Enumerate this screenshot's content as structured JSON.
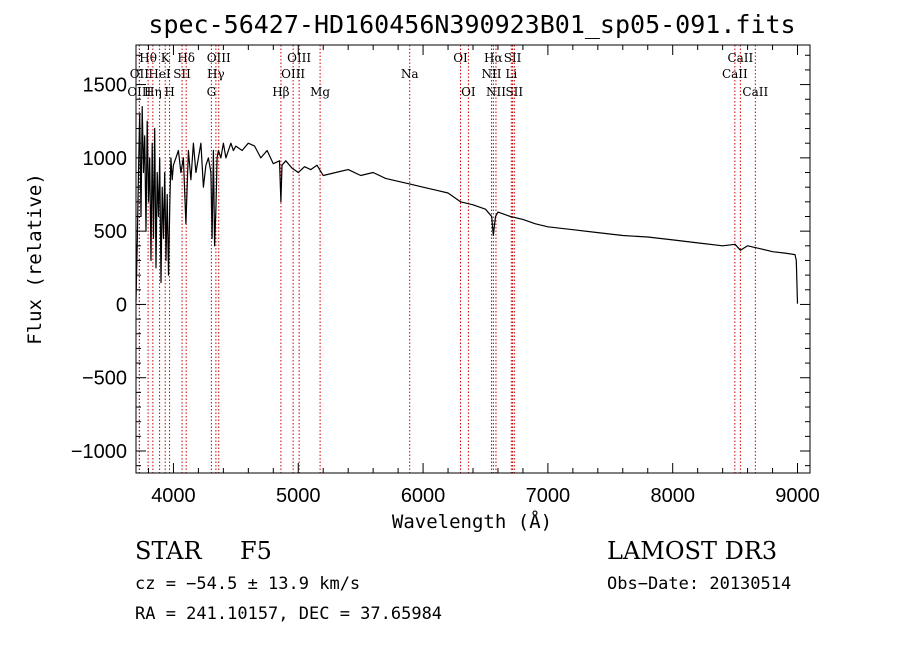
{
  "chart_data": {
    "type": "line",
    "title": "spec-56427-HD160456N390923B01_sp05-091.fits",
    "xlabel": "Wavelength (Å)",
    "ylabel": "Flux (relative)",
    "xlim": [
      3700,
      9100
    ],
    "ylim": [
      -1150,
      1770
    ],
    "xticks": [
      4000,
      5000,
      6000,
      7000,
      8000,
      9000
    ],
    "yticks": [
      -1000,
      -500,
      0,
      500,
      1000,
      1500
    ],
    "minor_x_step": 200,
    "minor_y_step": 100,
    "series": [
      {
        "name": "flux",
        "x": [
          3700,
          3710,
          3720,
          3730,
          3740,
          3750,
          3760,
          3770,
          3780,
          3790,
          3800,
          3810,
          3820,
          3830,
          3840,
          3850,
          3860,
          3870,
          3880,
          3890,
          3900,
          3910,
          3920,
          3930,
          3940,
          3950,
          3960,
          3970,
          3980,
          3990,
          4000,
          4020,
          4040,
          4060,
          4080,
          4100,
          4120,
          4140,
          4160,
          4180,
          4200,
          4220,
          4240,
          4260,
          4280,
          4300,
          4310,
          4320,
          4330,
          4340,
          4350,
          4360,
          4380,
          4400,
          4420,
          4440,
          4460,
          4480,
          4500,
          4550,
          4600,
          4650,
          4700,
          4750,
          4800,
          4850,
          4861,
          4870,
          4900,
          4950,
          5000,
          5050,
          5100,
          5150,
          5200,
          5300,
          5400,
          5500,
          5600,
          5700,
          5800,
          5900,
          6000,
          6100,
          6200,
          6300,
          6400,
          6500,
          6550,
          6563,
          6580,
          6600,
          6700,
          6800,
          6900,
          7000,
          7200,
          7400,
          7600,
          7800,
          8000,
          8200,
          8400,
          8500,
          8542,
          8600,
          8700,
          8800,
          8900,
          8980,
          8990,
          9000
        ],
        "y": [
          20,
          400,
          900,
          1300,
          600,
          1350,
          900,
          1150,
          500,
          1250,
          700,
          1000,
          300,
          1100,
          450,
          1200,
          250,
          900,
          600,
          1000,
          150,
          800,
          450,
          900,
          300,
          750,
          200,
          650,
          1000,
          850,
          950,
          1000,
          1050,
          900,
          1000,
          550,
          1050,
          850,
          1100,
          900,
          1000,
          1100,
          800,
          950,
          1000,
          900,
          450,
          1050,
          400,
          650,
          1000,
          1050,
          1000,
          1100,
          1000,
          1050,
          1100,
          1050,
          1080,
          1050,
          1100,
          1080,
          1000,
          1050,
          960,
          980,
          700,
          950,
          980,
          930,
          900,
          940,
          920,
          950,
          880,
          900,
          920,
          880,
          900,
          860,
          840,
          820,
          800,
          780,
          760,
          700,
          680,
          650,
          600,
          470,
          600,
          630,
          600,
          580,
          550,
          530,
          510,
          490,
          470,
          460,
          440,
          420,
          400,
          410,
          370,
          400,
          380,
          360,
          350,
          340,
          300,
          5
        ]
      }
    ],
    "spectral_lines": [
      {
        "label": "Hθ",
        "wavelength": 3797,
        "row": 1
      },
      {
        "label": "OII",
        "wavelength": 3727,
        "row": 2
      },
      {
        "label": "OIII",
        "wavelength": 3727,
        "row": 3
      },
      {
        "label": "K",
        "wavelength": 3934,
        "row": 1
      },
      {
        "label": "HeI",
        "wavelength": 3889,
        "row": 2
      },
      {
        "label": "Hη",
        "wavelength": 3835,
        "row": 3
      },
      {
        "label": "Hδ",
        "wavelength": 4102,
        "row": 1
      },
      {
        "label": "SII",
        "wavelength": 4069,
        "row": 2
      },
      {
        "label": "H",
        "wavelength": 3969,
        "row": 3
      },
      {
        "label": "OIII",
        "wavelength": 4363,
        "row": 1
      },
      {
        "label": "Hγ",
        "wavelength": 4340,
        "row": 2
      },
      {
        "label": "G",
        "wavelength": 4304,
        "row": 3
      },
      {
        "label": "OIII",
        "wavelength": 5007,
        "row": 1
      },
      {
        "label": "OIII",
        "wavelength": 4959,
        "row": 2
      },
      {
        "label": "Hβ",
        "wavelength": 4861,
        "row": 3
      },
      {
        "label": "Mg",
        "wavelength": 5175,
        "row": 3
      },
      {
        "label": "Na",
        "wavelength": 5893,
        "row": 2
      },
      {
        "label": "OI",
        "wavelength": 6300,
        "row": 1
      },
      {
        "label": "OI",
        "wavelength": 6363,
        "row": 3
      },
      {
        "label": "Hα",
        "wavelength": 6563,
        "row": 1
      },
      {
        "label": "NII",
        "wavelength": 6548,
        "row": 2
      },
      {
        "label": "NII",
        "wavelength": 6584,
        "row": 3
      },
      {
        "label": "SII",
        "wavelength": 6717,
        "row": 1
      },
      {
        "label": "Li",
        "wavelength": 6707,
        "row": 2
      },
      {
        "label": "SII",
        "wavelength": 6731,
        "row": 3
      },
      {
        "label": "CaII",
        "wavelength": 8542,
        "row": 1
      },
      {
        "label": "CaII",
        "wavelength": 8498,
        "row": 2
      },
      {
        "label": "CaII",
        "wavelength": 8662,
        "row": 3
      }
    ],
    "line_color": "#cc0000",
    "spectrum_color": "#000000"
  },
  "info": {
    "object_class": "STAR",
    "subclass": "F5",
    "survey": "LAMOST DR3",
    "cz": "cz = −54.5 ± 13.9 km/s",
    "obs_date": "Obs−Date: 20130514",
    "coords": "RA = 241.10157, DEC =  37.65984"
  }
}
